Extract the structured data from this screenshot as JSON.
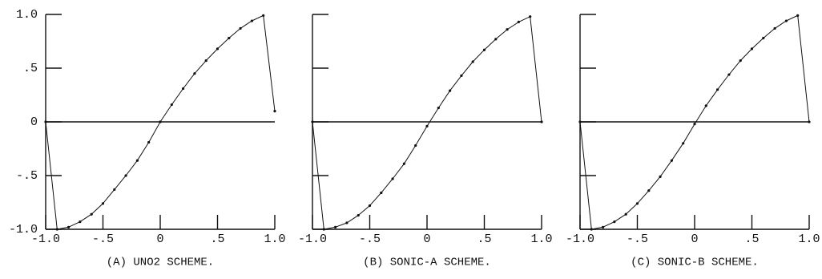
{
  "chart_data": [
    {
      "type": "line",
      "title": "(A) UNO2 SCHEME.",
      "x": [
        -1.0,
        -0.9,
        -0.8,
        -0.7,
        -0.6,
        -0.5,
        -0.4,
        -0.3,
        -0.2,
        -0.1,
        0.0,
        0.1,
        0.2,
        0.3,
        0.4,
        0.5,
        0.6,
        0.7,
        0.8,
        0.9,
        1.0
      ],
      "values": [
        0,
        -1.0,
        -0.98,
        -0.93,
        -0.86,
        -0.76,
        -0.63,
        -0.5,
        -0.36,
        -0.19,
        0,
        0.16,
        0.31,
        0.45,
        0.57,
        0.68,
        0.78,
        0.87,
        0.94,
        0.99,
        0.1
      ],
      "color": "#111",
      "xlim": [
        -1.0,
        1.0
      ],
      "ylim": [
        -1.0,
        1.0
      ],
      "xticks": [
        {
          "value": -1.0,
          "label": "-1.0"
        },
        {
          "value": -0.5,
          "label": "-.5"
        },
        0,
        {
          "value": 0.5,
          "label": ".5"
        },
        {
          "value": 1.0,
          "label": "1.0"
        }
      ],
      "yticks": [
        {
          "value": -1.0,
          "label": "-1.0"
        },
        {
          "value": -0.5,
          "label": "-.5"
        },
        0,
        {
          "value": 0.5,
          "label": ".5"
        },
        {
          "value": 1.0,
          "label": "1.0"
        }
      ]
    },
    {
      "type": "line",
      "title": "(B) SONIC-A SCHEME.",
      "x": [
        -1.0,
        -0.9,
        -0.8,
        -0.7,
        -0.6,
        -0.5,
        -0.4,
        -0.3,
        -0.2,
        -0.1,
        0.0,
        0.1,
        0.2,
        0.3,
        0.4,
        0.5,
        0.6,
        0.7,
        0.8,
        0.9,
        1.0
      ],
      "values": [
        0,
        -1.0,
        -0.98,
        -0.94,
        -0.87,
        -0.78,
        -0.66,
        -0.53,
        -0.39,
        -0.22,
        -0.04,
        0.13,
        0.29,
        0.43,
        0.56,
        0.67,
        0.77,
        0.86,
        0.93,
        0.98,
        0
      ],
      "color": "#111",
      "xlim": [
        -1.0,
        1.0
      ],
      "ylim": [
        -1.0,
        1.0
      ],
      "xticks": [
        {
          "value": -1.0,
          "label": "-1.0"
        },
        {
          "value": -0.5,
          "label": "-.5"
        },
        0,
        {
          "value": 0.5,
          "label": ".5"
        },
        {
          "value": 1.0,
          "label": "1.0"
        }
      ]
    },
    {
      "type": "line",
      "title": "(C) SONIC-B SCHEME.",
      "x": [
        -1.0,
        -0.9,
        -0.8,
        -0.7,
        -0.6,
        -0.5,
        -0.4,
        -0.3,
        -0.2,
        -0.1,
        0.0,
        0.1,
        0.2,
        0.3,
        0.4,
        0.5,
        0.6,
        0.7,
        0.8,
        0.9,
        1.0
      ],
      "values": [
        0,
        -1.0,
        -0.98,
        -0.93,
        -0.86,
        -0.76,
        -0.64,
        -0.51,
        -0.36,
        -0.2,
        -0.02,
        0.15,
        0.3,
        0.44,
        0.57,
        0.68,
        0.78,
        0.87,
        0.94,
        0.99,
        0
      ],
      "color": "#111",
      "xlim": [
        -1.0,
        1.0
      ],
      "ylim": [
        -1.0,
        1.0
      ],
      "xticks": [
        {
          "value": -1.0,
          "label": "-1.0"
        },
        {
          "value": -0.5,
          "label": "-.5"
        },
        0,
        {
          "value": 0.5,
          "label": ".5"
        },
        {
          "value": 1.0,
          "label": "1.0"
        }
      ]
    }
  ]
}
